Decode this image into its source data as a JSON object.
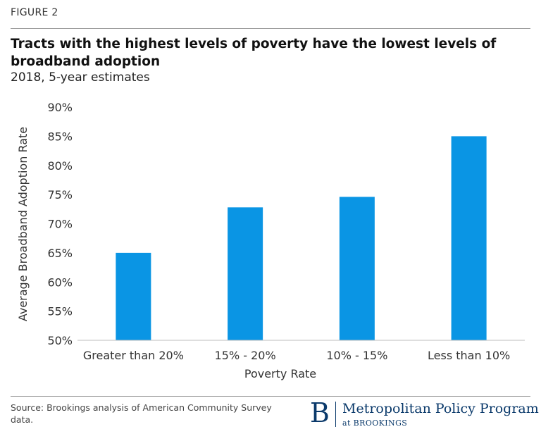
{
  "figure_label": "FIGURE 2",
  "title": "Tracts with the highest levels of poverty have the lowest levels of broadband adoption",
  "subtitle": "2018, 5-year estimates",
  "chart_data": {
    "type": "bar",
    "categories": [
      "Greater than 20%",
      "15% - 20%",
      "10% - 15%",
      "Less than 10%"
    ],
    "values": [
      65.0,
      72.8,
      74.6,
      85.0
    ],
    "xlabel": "Poverty Rate",
    "ylabel": "Average Broadband Adoption Rate",
    "ylim": [
      50,
      90
    ],
    "yticks": [
      50,
      55,
      60,
      65,
      70,
      75,
      80,
      85,
      90
    ],
    "ytick_labels": [
      "50%",
      "55%",
      "60%",
      "65%",
      "70%",
      "75%",
      "80%",
      "85%",
      "90%"
    ],
    "grid": false,
    "bar_color": "#0a95e4"
  },
  "source": "Source: Brookings analysis of American Community Survey data.",
  "logo": {
    "mark": "B",
    "name": "Metropolitan Policy Program",
    "sub": "at BROOKINGS"
  },
  "colors": {
    "bar": "#0a95e4",
    "brand": "#0b3a6b",
    "rule": "#9a9a9a"
  }
}
